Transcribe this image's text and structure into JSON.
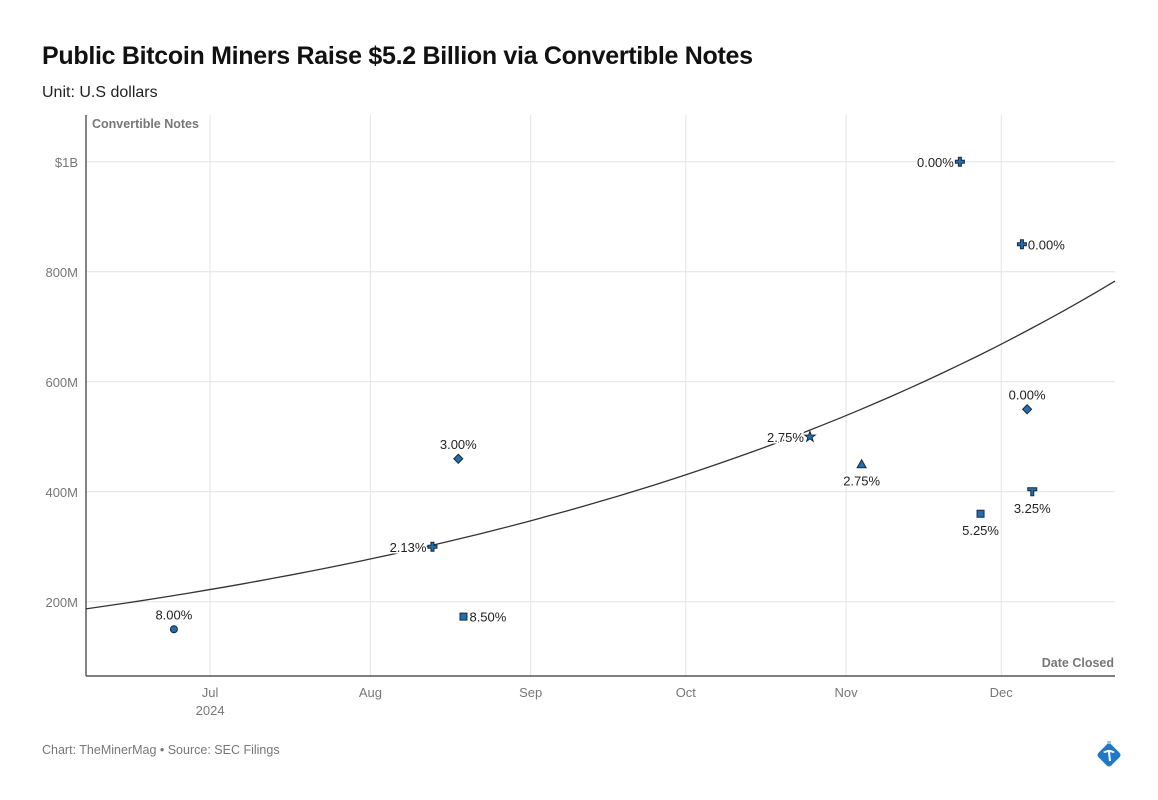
{
  "chart_data": {
    "type": "scatter",
    "title": "Public Bitcoin Miners Raise $5.2 Billion via Convertible Notes",
    "subtitle": "Unit: U.S dollars",
    "ylabel": "Convertible Notes",
    "xlabel": "Date Closed",
    "xlim": [
      "2024-06-07",
      "2024-12-23"
    ],
    "ylim": [
      65000000,
      1085000000
    ],
    "grid": true,
    "x_ticks": [
      {
        "date": "2024-07-01",
        "label": "Jul",
        "sublabel": "2024"
      },
      {
        "date": "2024-08-01",
        "label": "Aug"
      },
      {
        "date": "2024-09-01",
        "label": "Sep"
      },
      {
        "date": "2024-10-01",
        "label": "Oct"
      },
      {
        "date": "2024-11-01",
        "label": "Nov"
      },
      {
        "date": "2024-12-01",
        "label": "Dec"
      }
    ],
    "y_ticks": [
      {
        "value": 200000000,
        "label": "200M"
      },
      {
        "value": 400000000,
        "label": "400M"
      },
      {
        "value": 600000000,
        "label": "600M"
      },
      {
        "value": 800000000,
        "label": "800M"
      },
      {
        "value": 1000000000,
        "label": "$1B"
      }
    ],
    "marker_color": "#1f6fb2",
    "points": [
      {
        "date": "2024-06-24",
        "value": 150000000,
        "label": "8.00%",
        "marker": "circle",
        "label_pos": "top"
      },
      {
        "date": "2024-08-13",
        "value": 300000000,
        "label": "2.13%",
        "marker": "cross",
        "label_pos": "left"
      },
      {
        "date": "2024-08-18",
        "value": 460000000,
        "label": "3.00%",
        "marker": "diamond",
        "label_pos": "top"
      },
      {
        "date": "2024-08-19",
        "value": 173000000,
        "label": "8.50%",
        "marker": "square",
        "label_pos": "right"
      },
      {
        "date": "2024-10-25",
        "value": 500000000,
        "label": "2.75%",
        "marker": "star",
        "label_pos": "left"
      },
      {
        "date": "2024-11-04",
        "value": 450000000,
        "label": "2.75%",
        "marker": "triangle",
        "label_pos": "bottom"
      },
      {
        "date": "2024-11-23",
        "value": 1000000000,
        "label": "0.00%",
        "marker": "cross",
        "label_pos": "left"
      },
      {
        "date": "2024-11-27",
        "value": 360000000,
        "label": "5.25%",
        "marker": "square",
        "label_pos": "bottom"
      },
      {
        "date": "2024-12-05",
        "value": 850000000,
        "label": "0.00%",
        "marker": "cross",
        "label_pos": "right"
      },
      {
        "date": "2024-12-06",
        "value": 550000000,
        "label": "0.00%",
        "marker": "diamond",
        "label_pos": "top"
      },
      {
        "date": "2024-12-07",
        "value": 400000000,
        "label": "3.25%",
        "marker": "tshape",
        "label_pos": "bottom"
      }
    ],
    "trendline": {
      "type": "exponential",
      "start": {
        "date": "2024-06-07",
        "value": 187000000
      },
      "end": {
        "date": "2024-12-23",
        "value": 783000000
      }
    }
  },
  "footer": "Chart: TheMinerMag • Source: SEC Filings"
}
